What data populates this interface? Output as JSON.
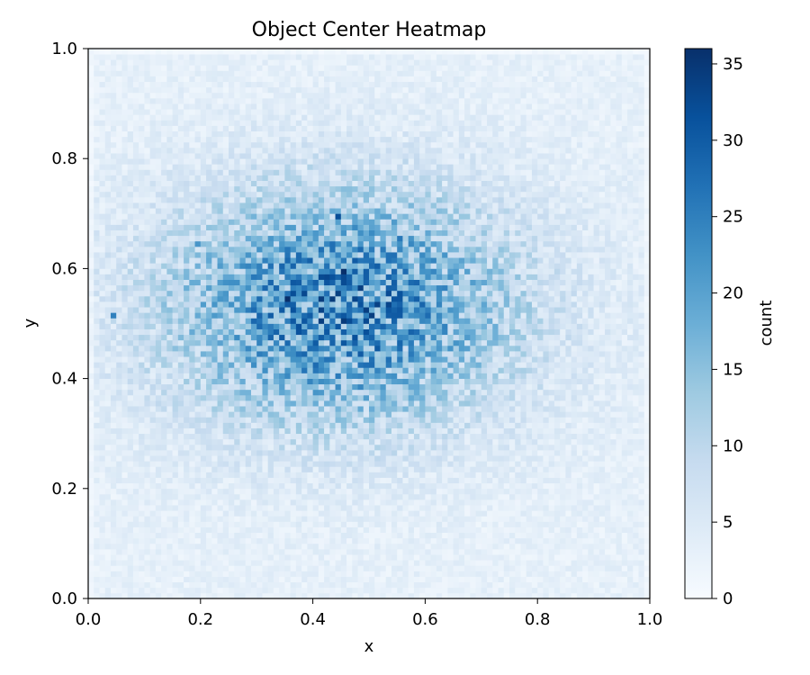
{
  "chart_data": {
    "type": "heatmap",
    "title": "Object Center Heatmap",
    "xlabel": "x",
    "ylabel": "y",
    "xlim": [
      0.0,
      1.0
    ],
    "ylim": [
      0.0,
      1.0
    ],
    "x_ticks": [
      "0.0",
      "0.2",
      "0.4",
      "0.6",
      "0.8",
      "1.0"
    ],
    "y_ticks": [
      "0.0",
      "0.2",
      "0.4",
      "0.6",
      "0.8",
      "1.0"
    ],
    "bins": [
      100,
      100
    ],
    "colormap": "Blues",
    "colorbar": {
      "label": "count",
      "range": [
        0,
        36
      ],
      "ticks": [
        "0",
        "5",
        "10",
        "15",
        "20",
        "25",
        "30",
        "35"
      ]
    },
    "density": {
      "description_free": true,
      "peak_center": [
        0.45,
        0.53
      ],
      "peak_count": 36,
      "spread": [
        0.22,
        0.15
      ],
      "background_count": 3
    },
    "hot_cells": [
      {
        "x": 0.445,
        "y": 0.695,
        "value": 32
      },
      {
        "x": 0.455,
        "y": 0.595,
        "value": 36
      },
      {
        "x": 0.355,
        "y": 0.545,
        "value": 36
      },
      {
        "x": 0.495,
        "y": 0.525,
        "value": 34
      },
      {
        "x": 0.435,
        "y": 0.475,
        "value": 28
      },
      {
        "x": 0.045,
        "y": 0.515,
        "value": 25
      },
      {
        "x": 0.195,
        "y": 0.645,
        "value": 22
      },
      {
        "x": 0.485,
        "y": 0.385,
        "value": 24
      },
      {
        "x": 0.555,
        "y": 0.655,
        "value": 26
      }
    ],
    "colors": {
      "low": "#f7fbff",
      "mid": "#6baed6",
      "high": "#08306b"
    }
  }
}
